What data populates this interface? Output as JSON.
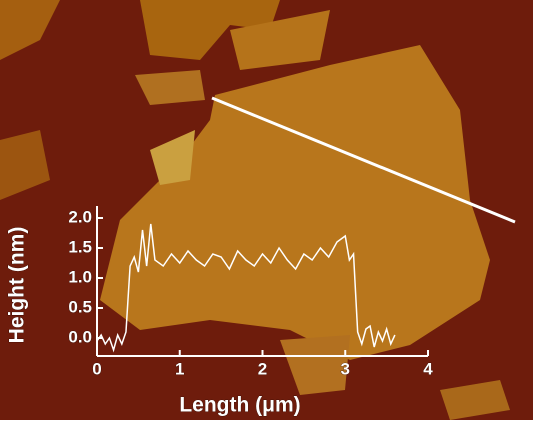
{
  "chart_data": {
    "type": "line",
    "xlabel": "Length (μm)",
    "ylabel": "Height (nm)",
    "x": [
      0,
      0.05,
      0.1,
      0.15,
      0.2,
      0.25,
      0.3,
      0.35,
      0.4,
      0.45,
      0.5,
      0.55,
      0.6,
      0.65,
      0.7,
      0.8,
      0.9,
      1.0,
      1.1,
      1.2,
      1.3,
      1.4,
      1.5,
      1.6,
      1.7,
      1.8,
      1.9,
      2.0,
      2.1,
      2.2,
      2.3,
      2.4,
      2.5,
      2.6,
      2.7,
      2.8,
      2.9,
      3.0,
      3.05,
      3.1,
      3.15,
      3.2,
      3.25,
      3.3,
      3.35,
      3.4,
      3.45,
      3.5,
      3.55,
      3.6
    ],
    "values": [
      -0.05,
      0.05,
      -0.1,
      0.0,
      -0.2,
      0.05,
      -0.1,
      0.1,
      1.2,
      1.35,
      1.1,
      1.8,
      1.2,
      1.9,
      1.3,
      1.2,
      1.4,
      1.25,
      1.45,
      1.3,
      1.2,
      1.4,
      1.35,
      1.15,
      1.45,
      1.3,
      1.2,
      1.4,
      1.25,
      1.5,
      1.3,
      1.15,
      1.4,
      1.3,
      1.5,
      1.35,
      1.6,
      1.7,
      1.3,
      1.4,
      0.1,
      -0.1,
      0.15,
      0.2,
      -0.15,
      0.1,
      -0.05,
      0.15,
      -0.1,
      0.05
    ],
    "color": "#ffffff",
    "xlim": [
      0,
      4
    ],
    "ylim": [
      -0.3,
      2.2
    ],
    "xticks": [
      0,
      1,
      2,
      3,
      4
    ],
    "yticks": [
      {
        "value": 0,
        "label": "0.0"
      },
      0.5,
      {
        "value": 1,
        "label": "1.0"
      },
      1.5,
      {
        "value": 2,
        "label": "2.0"
      }
    ]
  }
}
